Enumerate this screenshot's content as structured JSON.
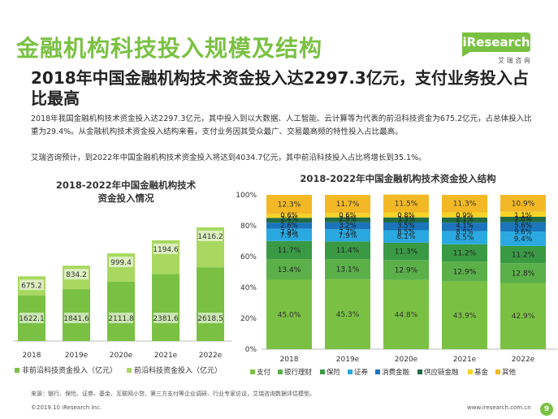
{
  "header": {
    "title": "金融机构科技投入规模及结构",
    "subtitle": "2018年中国金融机构技术资金投入达2297.3亿元，支付业务投入占比最高",
    "paragraph1": "2018年我国金融机构技术资金投入达2297.3亿元，其中投入到以大数据、人工智能、云计算等为代表的前沿科技资金为675.2亿元，占总体投入比重为29.4%。从金融机构技术资金投入结构来看，支付业务因其受众最广、交易最高频的特性投入占比最高。",
    "paragraph2": "艾瑞咨询预计，到2022年中国金融机构技术资金投入将达到4034.7亿元，其中前沿科技投入占比将增长到35.1%。"
  },
  "logo": {
    "brand": "iResearch",
    "cn": "艾 瑞 咨 询"
  },
  "colors": {
    "green": "#7ac143",
    "dark_green": "#3a9a44",
    "title_green": "#7ac143"
  },
  "chart_data": [
    {
      "type": "bar",
      "title_line1": "2018-2022年中国金融机构技术",
      "title_line2": "资金投入情况",
      "categories": [
        "2018",
        "2019e",
        "2020e",
        "2021e",
        "2022e"
      ],
      "series": [
        {
          "name": "非前沿科技资金投入（亿元）",
          "color": "#7ac143",
          "values": [
            1622.1,
            1841.6,
            2111.8,
            2381.6,
            2618.5
          ]
        },
        {
          "name": "前沿科技资金投入（亿元）",
          "color": "#a8d85f",
          "values": [
            675.2,
            834.2,
            999.4,
            1194.6,
            1416.2
          ]
        }
      ],
      "stacked": true,
      "grid": false
    },
    {
      "type": "bar",
      "title": "2018-2022年中国金融机构技术资金投入结构",
      "categories": [
        "2018",
        "2019e",
        "2020e",
        "2021e",
        "2022e"
      ],
      "y_ticks": [
        "0%",
        "20%",
        "40%",
        "60%",
        "80%",
        "100%"
      ],
      "ylim": [
        0,
        100
      ],
      "stacked": true,
      "series": [
        {
          "name": "支付",
          "color": "#7ac143",
          "values": [
            45.0,
            45.3,
            44.8,
            43.9,
            42.9
          ],
          "labels": [
            "45.0%",
            "45.3%",
            "44.8%",
            "43.9%",
            "42.9%"
          ]
        },
        {
          "name": "银行理财",
          "color": "#5cb04a",
          "values": [
            13.4,
            13.1,
            12.9,
            12.9,
            12.8
          ],
          "labels": [
            "13.4%",
            "13.1%",
            "12.9%",
            "12.9%",
            "12.8%"
          ]
        },
        {
          "name": "保险",
          "color": "#3a9a44",
          "values": [
            11.7,
            11.4,
            11.3,
            11.2,
            11.2
          ],
          "labels": [
            "11.7%",
            "11.4%",
            "11.3%",
            "11.2%",
            "11.2%"
          ]
        },
        {
          "name": "证券",
          "color": "#29a9e0",
          "values": [
            7.9,
            7.9,
            8.1,
            8.5,
            9.4
          ],
          "labels": [
            "7.9%",
            "7.9%",
            "8.1%",
            "8.5%",
            "9.4%"
          ]
        },
        {
          "name": "消费金融",
          "color": "#1b75bb",
          "values": [
            4.0,
            4.5,
            5.0,
            5.5,
            6.0
          ],
          "labels": [
            "",
            "",
            "",
            "",
            ""
          ]
        },
        {
          "name": "供应链金融",
          "color": "#1f6b45",
          "values": [
            3.1,
            3.2,
            3.3,
            3.4,
            3.5
          ],
          "labels": [
            "",
            "",
            "",
            "",
            ""
          ]
        },
        {
          "name": "基金",
          "color": "#f5d327",
          "values": [
            2.6,
            2.9,
            3.3,
            3.3,
            3.3
          ],
          "labels": [
            "",
            "",
            "",
            "",
            ""
          ]
        },
        {
          "name": "其他",
          "color": "#f2b825",
          "values": [
            12.3,
            11.7,
            11.5,
            11.3,
            10.9
          ],
          "labels": [
            "12.3%",
            "11.7%",
            "11.5%",
            "11.3%",
            "10.9%"
          ]
        }
      ],
      "overlap_labels": [
        [
          "0.6%",
          "2.4%",
          "2.6%",
          "7.9%"
        ],
        [
          "0.6%",
          "2.9%",
          "3.2%",
          "7.7%"
        ],
        [
          "0.8%",
          "3.3%",
          "3.5%",
          "8.5%"
        ],
        [
          "0.9%",
          "2.1%",
          "4.1%",
          "8.5%"
        ],
        [
          "1.1%",
          "2.0%",
          "5.6%",
          "9.6%"
        ]
      ],
      "grid": false
    }
  ],
  "footer": {
    "source": "来源：银行、保险、证券、基金、互联网小贷、第三方支付等企业调研、行业专家访谈，艾瑞咨询数据评估模型。",
    "copyright": "©2019.10 iResearch Inc.",
    "url": "www.iresearch.com.cn",
    "page": "9"
  }
}
